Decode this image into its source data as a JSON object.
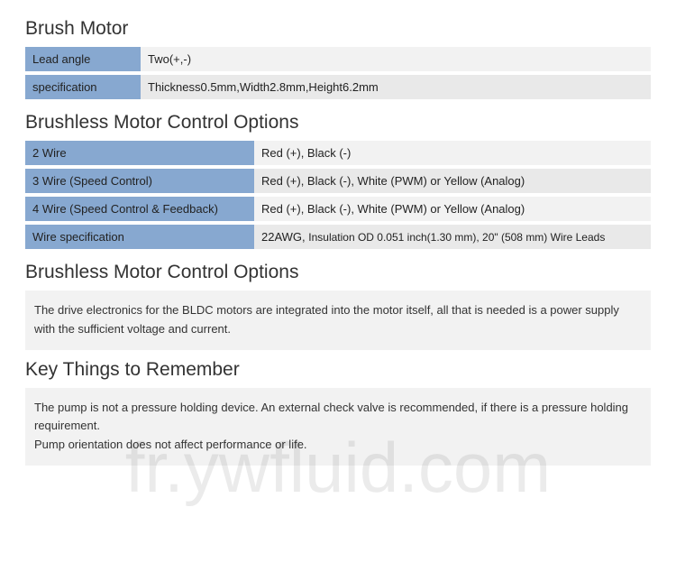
{
  "colors": {
    "header_bg": "#87a8d0",
    "row_bg_light": "#f2f2f2",
    "row_bg_gray": "#e9e9e9",
    "info_bg": "#f2f2f2",
    "text": "#222222",
    "title": "#333333"
  },
  "section1": {
    "title": "Brush Motor",
    "rows": [
      {
        "label": "Lead angle",
        "value": "Two(+,-)"
      },
      {
        "label": "specification",
        "value": "Thickness0.5mm,Width2.8mm,Height6.2mm"
      }
    ]
  },
  "section2": {
    "title": "Brushless Motor Control Options",
    "rows": [
      {
        "label": "2 Wire",
        "value": "Red (+), Black (-)"
      },
      {
        "label": "3 Wire (Speed Control)",
        "value": "Red (+), Black (-), White (PWM) or Yellow (Analog)"
      },
      {
        "label": "4 Wire (Speed Control & Feedback)",
        "value": "Red (+), Black (-), White (PWM) or Yellow (Analog)"
      },
      {
        "label": "Wire specification",
        "value_pre": "22AWG, ",
        "value_small": "Insulation OD 0.051 inch(1.30 mm), 20\" (508 mm) Wire Leads"
      }
    ]
  },
  "section3": {
    "title": "Brushless Motor Control Options",
    "text": "The drive electronics for the BLDC motors are integrated into the motor itself, all that is needed is a power supply with the sufficient voltage and current."
  },
  "section4": {
    "title": "Key Things to Remember",
    "text": "The pump is not a pressure holding device. An external check valve is recommended, if there is a pressure holding requirement.\nPump orientation does not affect performance or life."
  },
  "watermark": "fr.ywfluid.com"
}
